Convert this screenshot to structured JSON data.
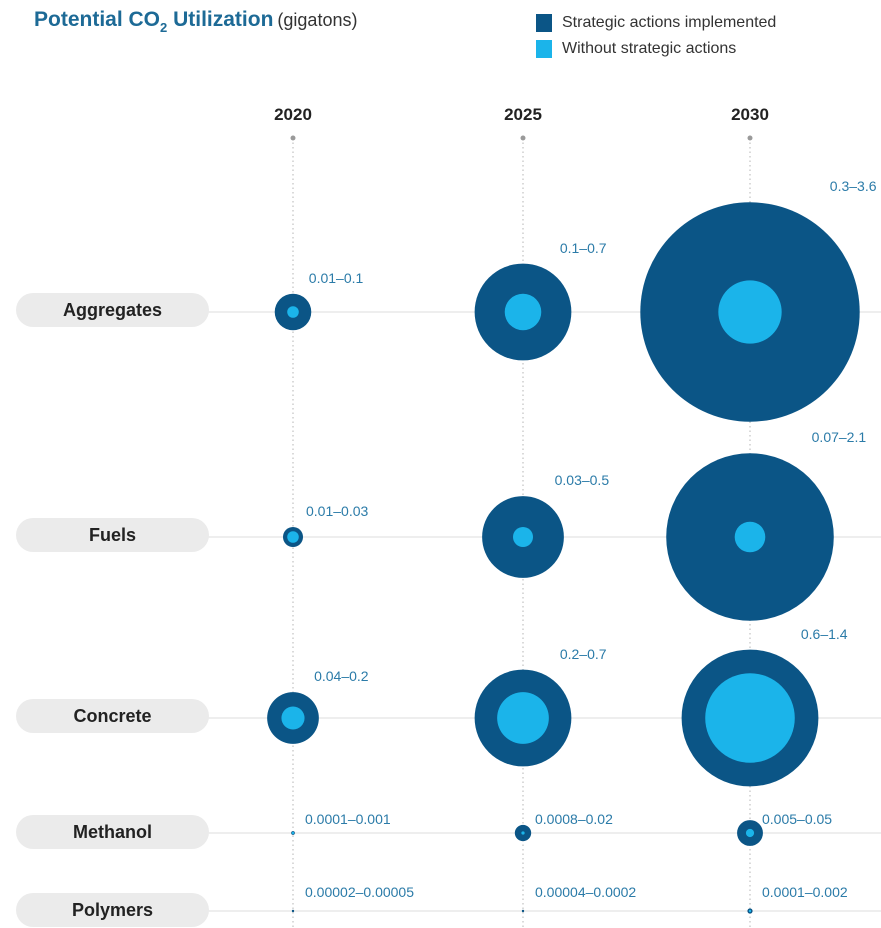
{
  "title": {
    "main": "Potential CO",
    "subscript": "2",
    "rest": " Utilization",
    "unit": "(gigatons)"
  },
  "colors": {
    "strategic": "#0b5586",
    "without": "#1bb4ea",
    "accent_text": "#2b7ba8",
    "title": "#1d6a96"
  },
  "legend": [
    {
      "label": "Strategic actions implemented",
      "color": "#0b5586"
    },
    {
      "label": "Without strategic actions",
      "color": "#1bb4ea"
    }
  ],
  "chart_data": {
    "type": "bubble",
    "years": [
      "2020",
      "2025",
      "2030"
    ],
    "series": [
      {
        "name": "Strategic actions implemented"
      },
      {
        "name": "Without strategic actions"
      }
    ],
    "rows": [
      {
        "category": "Aggregates",
        "values": [
          {
            "year": "2020",
            "label": "0.01–0.1",
            "low": 0.01,
            "high": 0.1
          },
          {
            "year": "2025",
            "label": "0.1–0.7",
            "low": 0.1,
            "high": 0.7
          },
          {
            "year": "2030",
            "label": "0.3–3.6",
            "low": 0.3,
            "high": 3.6
          }
        ]
      },
      {
        "category": "Fuels",
        "values": [
          {
            "year": "2020",
            "label": "0.01–0.03",
            "low": 0.01,
            "high": 0.03
          },
          {
            "year": "2025",
            "label": "0.03–0.5",
            "low": 0.03,
            "high": 0.5
          },
          {
            "year": "2030",
            "label": "0.07–2.1",
            "low": 0.07,
            "high": 2.1
          }
        ]
      },
      {
        "category": "Concrete",
        "values": [
          {
            "year": "2020",
            "label": "0.04–0.2",
            "low": 0.04,
            "high": 0.2
          },
          {
            "year": "2025",
            "label": "0.2–0.7",
            "low": 0.2,
            "high": 0.7
          },
          {
            "year": "2030",
            "label": "0.6–1.4",
            "low": 0.6,
            "high": 1.4
          }
        ]
      },
      {
        "category": "Methanol",
        "values": [
          {
            "year": "2020",
            "label": "0.0001–0.001",
            "low": 0.0001,
            "high": 0.001
          },
          {
            "year": "2025",
            "label": "0.0008–0.02",
            "low": 0.0008,
            "high": 0.02
          },
          {
            "year": "2030",
            "label": "0.005–0.05",
            "low": 0.005,
            "high": 0.05
          }
        ]
      },
      {
        "category": "Polymers",
        "values": [
          {
            "year": "2020",
            "label": "0.00002–0.00005",
            "low": 2e-05,
            "high": 5e-05
          },
          {
            "year": "2025",
            "label": "0.00004–0.0002",
            "low": 4e-05,
            "high": 0.0002
          },
          {
            "year": "2030",
            "label": "0.0001–0.002",
            "low": 0.0001,
            "high": 0.002
          }
        ]
      }
    ]
  }
}
